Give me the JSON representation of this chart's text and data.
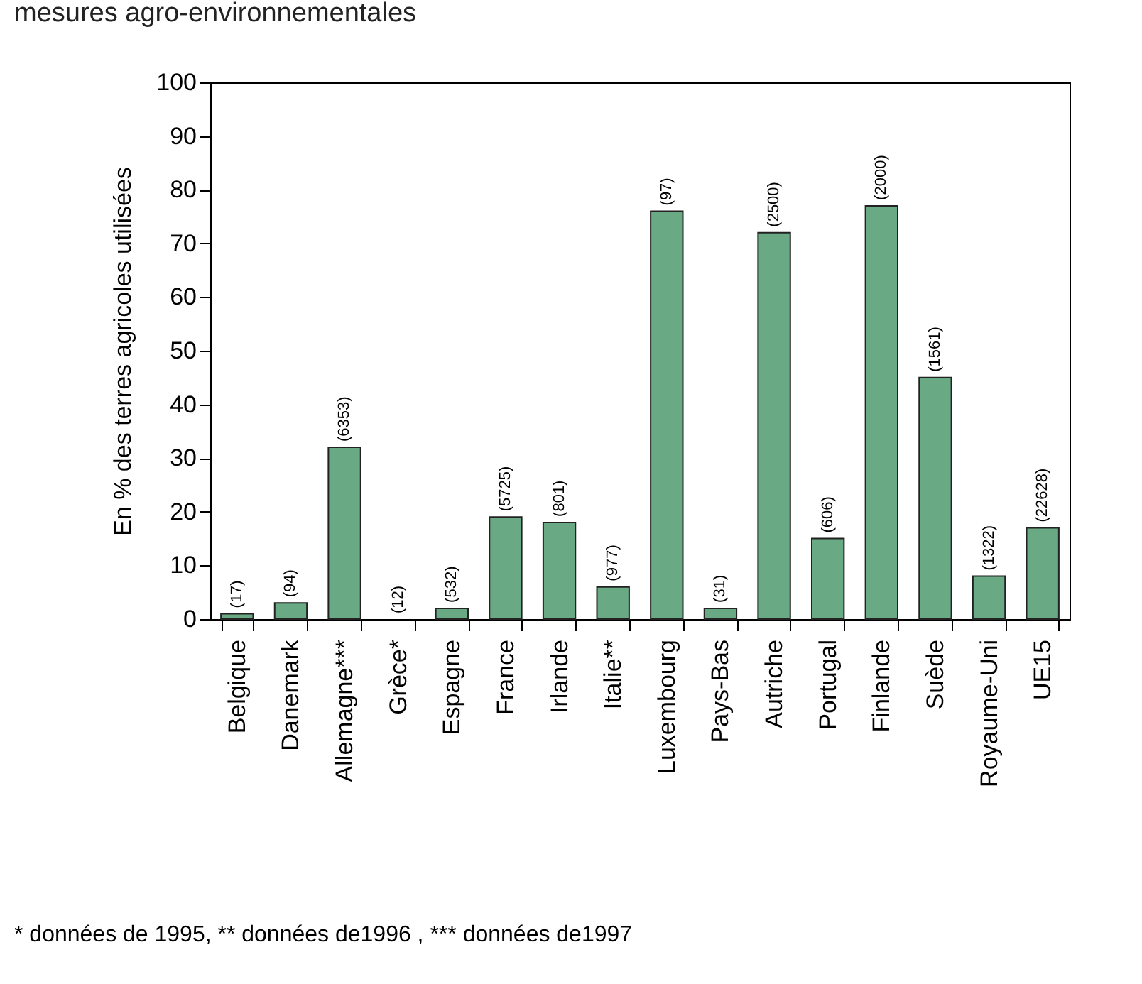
{
  "chart_data": {
    "type": "bar",
    "title": "mesures agro-environnementales",
    "ylabel": "En %  des terres agricoles utilisées",
    "categories": [
      "Belgique",
      "Danemark",
      "Allemagne***",
      "Grèce*",
      "Espagne",
      "France",
      "Irlande",
      "Italie**",
      "Luxembourg",
      "Pays-Bas",
      "Autriche",
      "Portugal",
      "Finlande",
      "Suède",
      "Royaume-Uni",
      "UE15"
    ],
    "values": [
      1,
      3,
      32,
      0,
      2,
      19,
      18,
      6,
      76,
      2,
      72,
      15,
      77,
      45,
      8,
      17
    ],
    "color": "#69a983",
    "ylim": [
      0,
      100
    ],
    "yticks": [
      0,
      10,
      20,
      30,
      40,
      50,
      60,
      70,
      80,
      90,
      100
    ],
    "grid": false,
    "annotations": [
      {
        "text": "(17)",
        "x": "Belgique",
        "y": 1
      },
      {
        "text": "(94)",
        "x": "Danemark",
        "y": 3
      },
      {
        "text": "(6353)",
        "x": "Allemagne***",
        "y": 32
      },
      {
        "text": "(12)",
        "x": "Grèce*",
        "y": 0
      },
      {
        "text": "(532)",
        "x": "Espagne",
        "y": 2
      },
      {
        "text": "(5725)",
        "x": "France",
        "y": 19
      },
      {
        "text": "(801)",
        "x": "Irlande",
        "y": 18
      },
      {
        "text": "(977)",
        "x": "Italie**",
        "y": 6
      },
      {
        "text": "(97)",
        "x": "Luxembourg",
        "y": 76
      },
      {
        "text": "(31)",
        "x": "Pays-Bas",
        "y": 2
      },
      {
        "text": "(2500)",
        "x": "Autriche",
        "y": 72
      },
      {
        "text": "(606)",
        "x": "Portugal",
        "y": 15
      },
      {
        "text": "(2000)",
        "x": "Finlande",
        "y": 77
      },
      {
        "text": "(1561)",
        "x": "Suède",
        "y": 45
      },
      {
        "text": "(1322)",
        "x": "Royaume-Uni",
        "y": 8
      },
      {
        "text": "(22628)",
        "x": "UE15",
        "y": 17
      },
      "* données de 1995, ** données de1996 ,   *** données de1997"
    ]
  }
}
